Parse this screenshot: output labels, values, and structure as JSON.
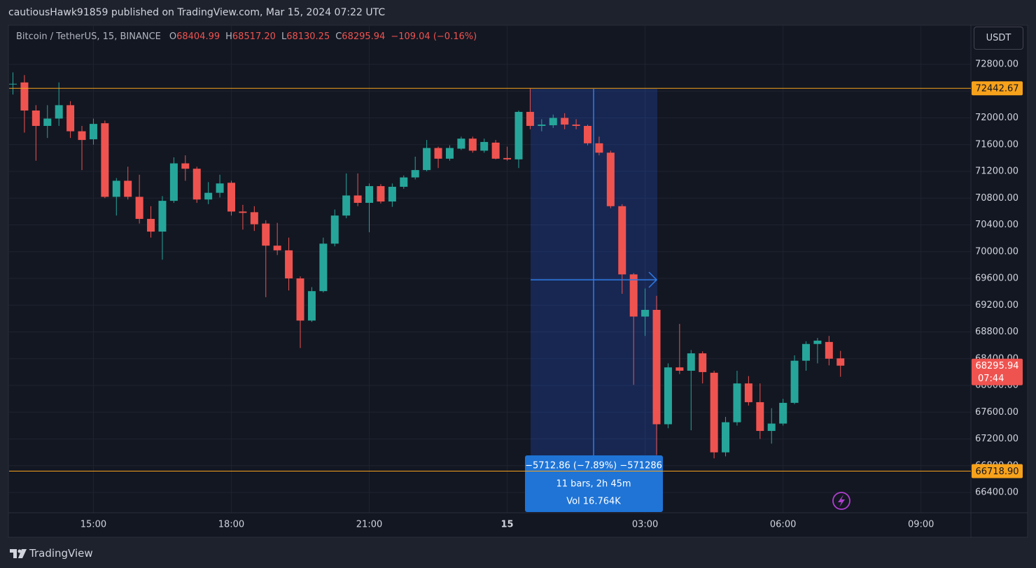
{
  "header": {
    "text": "cautiousHawk91859 published on TradingView.com, Mar 15, 2024 07:22 UTC"
  },
  "legend": {
    "symbol": "Bitcoin / TetherUS, 15, BINANCE",
    "ohlc": [
      {
        "key": "O",
        "value": "68404.99"
      },
      {
        "key": "H",
        "value": "68517.20"
      },
      {
        "key": "L",
        "value": "68130.25"
      },
      {
        "key": "C",
        "value": "68295.94"
      }
    ],
    "change": "−109.04 (−0.16%)"
  },
  "currency_button": "USDT",
  "footer": {
    "brand": "TradingView"
  },
  "chart_data": {
    "type": "candlestick",
    "up_color": "#26a69a",
    "down_color": "#ef5350",
    "grid": true,
    "categories": [
      null,
      null,
      null,
      null,
      null,
      null,
      null,
      "15:00",
      null,
      null,
      null,
      null,
      null,
      null,
      null,
      null,
      null,
      null,
      null,
      "18:00",
      null,
      null,
      null,
      null,
      null,
      null,
      null,
      null,
      null,
      null,
      null,
      "21:00",
      null,
      null,
      null,
      null,
      null,
      null,
      null,
      null,
      null,
      null,
      null,
      "15",
      null,
      null,
      null,
      null,
      null,
      null,
      null,
      null,
      null,
      null,
      null,
      "03:00",
      null,
      null,
      null,
      null,
      null,
      null,
      null,
      null,
      null,
      null,
      null,
      "06:00",
      null,
      null,
      null,
      null,
      null,
      null,
      null,
      null,
      null,
      null,
      null,
      "09:00",
      null,
      null,
      null,
      null
    ],
    "open": [
      72500,
      72530,
      72110,
      71880,
      71990,
      72190,
      71800,
      71680,
      71920,
      70820,
      71060,
      70820,
      70490,
      70300,
      70760,
      71320,
      71240,
      70780,
      70880,
      71030,
      70600,
      70590,
      70420,
      70090,
      70020,
      69600,
      68970,
      69410,
      70120,
      70540,
      70840,
      70730,
      70980,
      70750,
      70970,
      71110,
      71220,
      71550,
      71390,
      71540,
      71690,
      71510,
      71630,
      71400,
      71380,
      72090,
      71880,
      71890,
      72000,
      71900,
      71880,
      71620,
      71480,
      70680,
      69660,
      69030,
      69130,
      67420,
      68270,
      68220,
      68480,
      68190,
      67000,
      67450,
      68030,
      67750,
      67320,
      67430,
      67740,
      68370,
      68620,
      68650,
      68404.99,
      null,
      null,
      null,
      null,
      null,
      null,
      null,
      null,
      null,
      null,
      null
    ],
    "high": [
      72680,
      72640,
      72190,
      72190,
      72530,
      72250,
      71880,
      71990,
      71960,
      71100,
      71270,
      71150,
      70680,
      70830,
      71410,
      71440,
      71270,
      71040,
      71150,
      71060,
      70700,
      70680,
      70470,
      70430,
      70210,
      69630,
      69470,
      70210,
      70630,
      71170,
      71170,
      71020,
      71010,
      71020,
      71140,
      71420,
      71670,
      71570,
      71590,
      71720,
      71720,
      71690,
      71670,
      71570,
      72110,
      72442.67,
      71980,
      72050,
      72070,
      71980,
      71900,
      71720,
      71510,
      70710,
      69680,
      69450,
      69340,
      68330,
      68920,
      68530,
      68510,
      68220,
      67530,
      68220,
      68140,
      68030,
      67660,
      67800,
      68450,
      68660,
      68710,
      68740,
      68517.2,
      null,
      null,
      null,
      null,
      null,
      null,
      null,
      null,
      null,
      null,
      null
    ],
    "low": [
      72350,
      71780,
      71360,
      71700,
      71880,
      71700,
      71220,
      71600,
      70800,
      70540,
      70780,
      70420,
      70210,
      69880,
      70730,
      71060,
      70730,
      70710,
      70810,
      70540,
      70330,
      70310,
      69320,
      69950,
      69420,
      68560,
      68950,
      69390,
      70080,
      70500,
      70680,
      70290,
      70720,
      70670,
      70940,
      71080,
      71200,
      71250,
      71360,
      71520,
      71480,
      71480,
      71380,
      71360,
      71250,
      71830,
      71800,
      71850,
      71830,
      71830,
      71590,
      71440,
      70650,
      69370,
      68010,
      68740,
      66960,
      67360,
      68170,
      67330,
      68030,
      66910,
      66940,
      67400,
      67700,
      67200,
      67130,
      67400,
      67720,
      68220,
      68330,
      68300,
      68130.25,
      null,
      null,
      null,
      null,
      null,
      null,
      null,
      null,
      null,
      null,
      null
    ],
    "close": [
      72510,
      72110,
      71880,
      71990,
      72190,
      71800,
      71670,
      71910,
      70820,
      71060,
      70820,
      70490,
      70300,
      70760,
      71320,
      71240,
      70780,
      70880,
      71020,
      70600,
      70580,
      70410,
      70090,
      70020,
      69600,
      68970,
      69410,
      70120,
      70540,
      70840,
      70730,
      70980,
      70750,
      70970,
      71110,
      71220,
      71550,
      71390,
      71550,
      71690,
      71510,
      71640,
      71390,
      71380,
      72090,
      71880,
      71900,
      72000,
      71900,
      71880,
      71620,
      71480,
      70680,
      69660,
      69030,
      69130,
      67420,
      68270,
      68220,
      68480,
      68200,
      67000,
      67450,
      68030,
      67750,
      67320,
      67430,
      67740,
      68370,
      68620,
      68670,
      68400,
      68295.94,
      null,
      null,
      null,
      null,
      null,
      null,
      null,
      null,
      null,
      null,
      null
    ],
    "ylim": [
      66097,
      73386
    ],
    "yticks": [
      {
        "value": 72800,
        "label": "72800.00"
      },
      {
        "value": 72400,
        "label": "72400.00"
      },
      {
        "value": 72000,
        "label": "72000.00"
      },
      {
        "value": 71600,
        "label": "71600.00"
      },
      {
        "value": 71200,
        "label": "71200.00"
      },
      {
        "value": 70800,
        "label": "70800.00"
      },
      {
        "value": 70400,
        "label": "70400.00"
      },
      {
        "value": 70000,
        "label": "70000.00"
      },
      {
        "value": 69600,
        "label": "69600.00"
      },
      {
        "value": 69200,
        "label": "69200.00"
      },
      {
        "value": 68800,
        "label": "68800.00"
      },
      {
        "value": 68400,
        "label": "68400.00"
      },
      {
        "value": 68000,
        "label": "68000.00"
      },
      {
        "value": 67600,
        "label": "67600.00"
      },
      {
        "value": 67200,
        "label": "67200.00"
      },
      {
        "value": 66800,
        "label": "66800.00"
      },
      {
        "value": 66400,
        "label": "66400.00"
      }
    ],
    "hlines": [
      72442.67,
      {
        "value": 66718.9,
        "label": "66718.90"
      }
    ],
    "hline_color": "#f7a21b",
    "countdown": "07:44",
    "measure": {
      "lines": [
        "−5712.86 (−7.89%) −571286",
        "11 bars, 2h 45m",
        "Vol 16.764K"
      ]
    }
  }
}
